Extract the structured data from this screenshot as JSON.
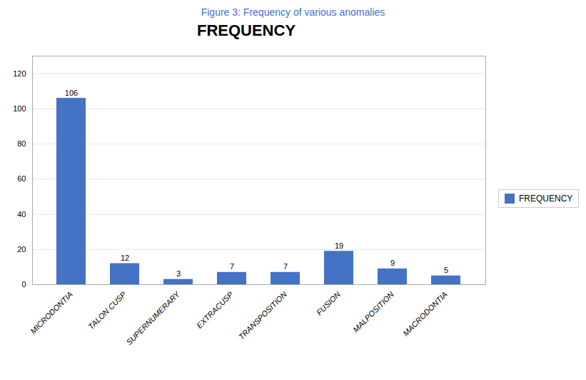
{
  "chart_data": {
    "type": "bar",
    "title": "FREQUENCY",
    "subtitle": "Figure 3:  Frequency of various anomalies",
    "categories": [
      "MICRODONTIA",
      "TALON CUSP",
      "SUPERNUMERARY",
      "EXTRACUSP",
      "TRANSPOSITION",
      "FUSION",
      "MALPOSITION",
      "MACRODONTIA"
    ],
    "series": [
      {
        "name": "FREQUENCY",
        "color": "#4472C4",
        "values": [
          106,
          12,
          3,
          7,
          7,
          19,
          9,
          5
        ]
      }
    ],
    "ylim": [
      0,
      130
    ],
    "yticks": [
      0,
      20,
      40,
      60,
      80,
      100,
      120
    ],
    "grid": true,
    "legend": "right",
    "data_labels": true
  }
}
